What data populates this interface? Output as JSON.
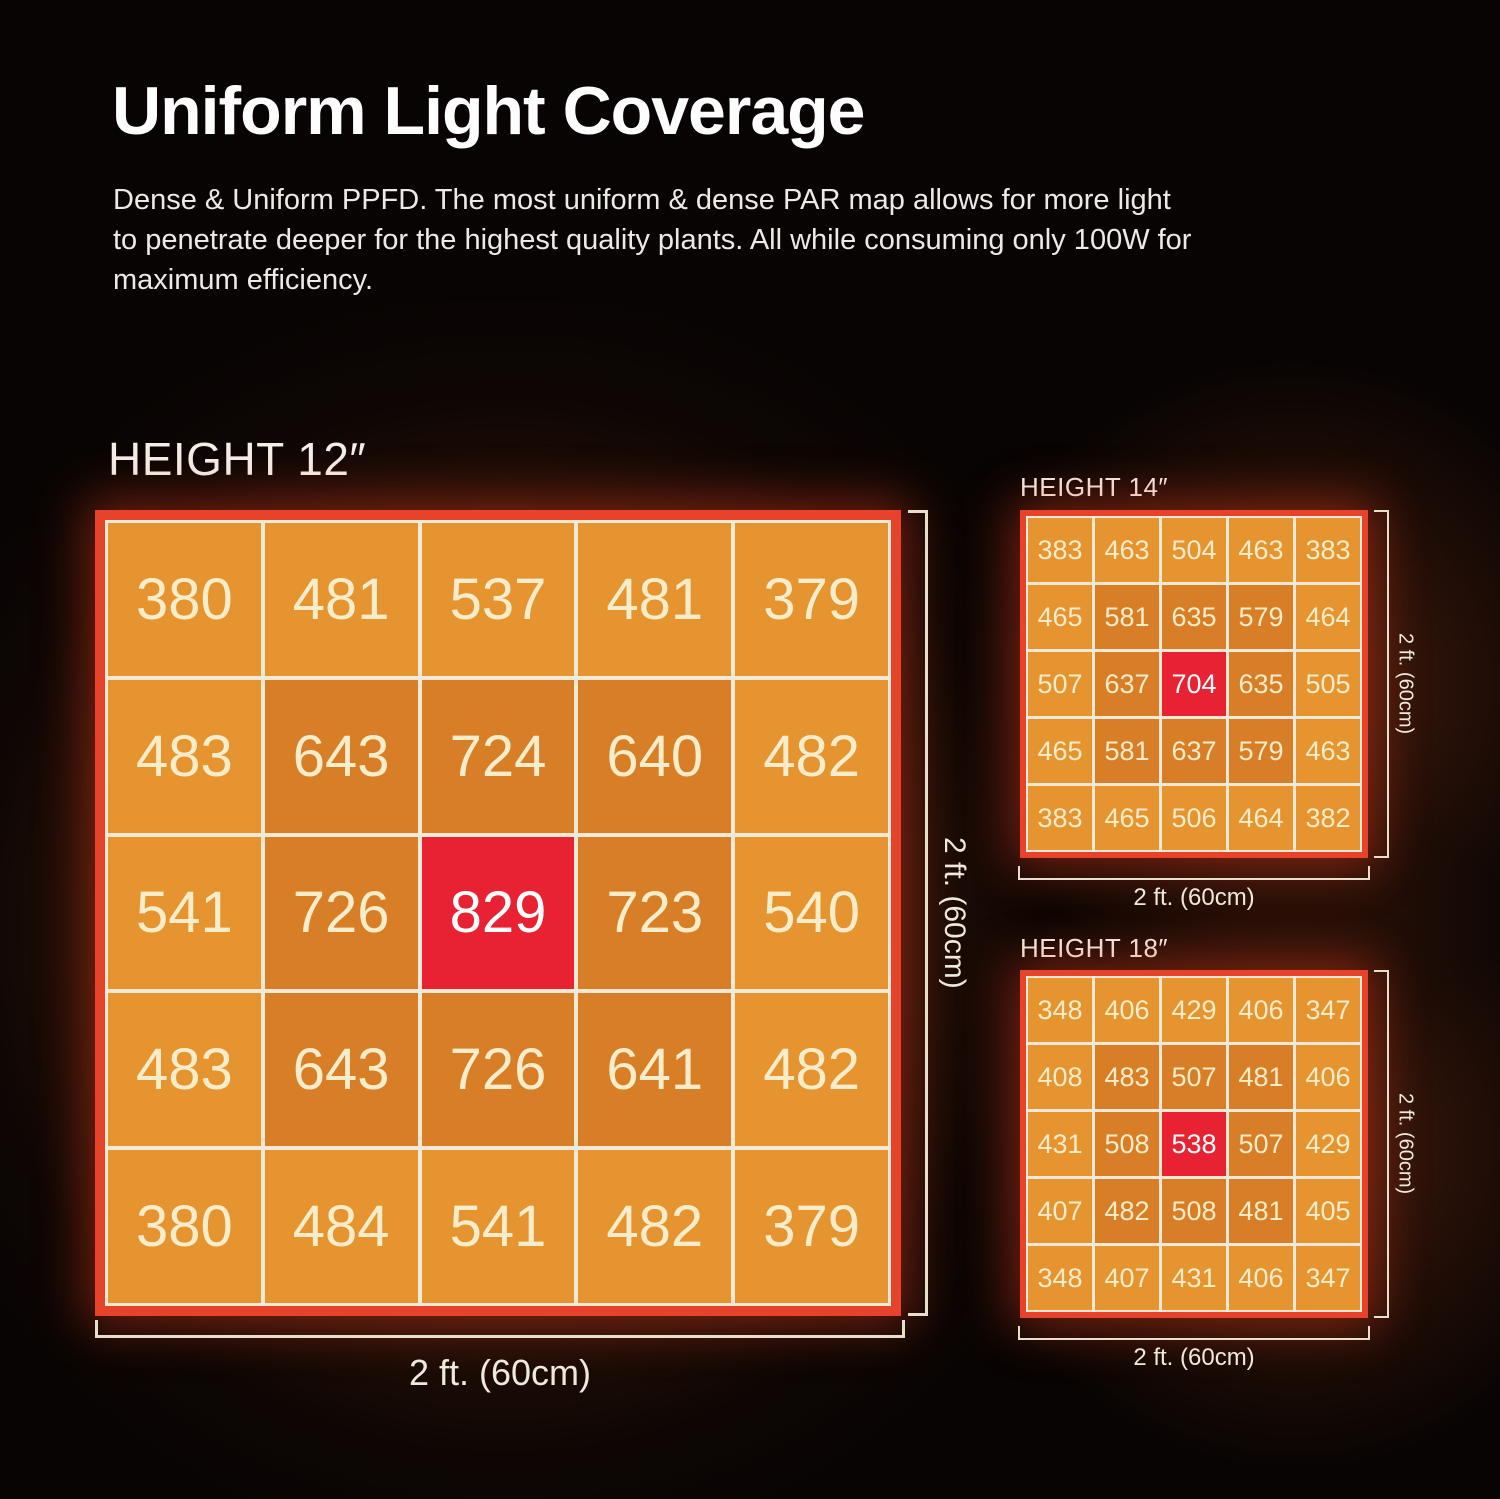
{
  "page": {
    "title": "Uniform Light Coverage",
    "description": "Dense & Uniform PPFD. The most uniform & dense PAR map allows for more light to penetrate deeper for the highest quality plants.  All while consuming only 100W for maximum efficiency."
  },
  "colors": {
    "background": "#070403",
    "frame_red": "#e7432a",
    "grid_line": "#f2ead6",
    "cell_low": "#e6942f",
    "cell_mid": "#d87e26",
    "cell_peak": "#e92233",
    "value_text": "#f8edcb",
    "peak_value_text": "#ffffff",
    "label_text": "#f3efe7"
  },
  "chart_data": [
    {
      "type": "heatmap",
      "title": "HEIGHT 12″",
      "rows": 5,
      "cols": 5,
      "values": [
        [
          380,
          481,
          537,
          481,
          379
        ],
        [
          483,
          643,
          724,
          640,
          482
        ],
        [
          541,
          726,
          829,
          723,
          540
        ],
        [
          483,
          643,
          726,
          641,
          482
        ],
        [
          380,
          484,
          541,
          482,
          379
        ]
      ],
      "x_label": "2 ft. (60cm)",
      "y_label": "2 ft. (60cm)",
      "color_rule": "outer ring low-orange, inner ring dark-orange, center peak red"
    },
    {
      "type": "heatmap",
      "title": "HEIGHT 14″",
      "rows": 5,
      "cols": 5,
      "values": [
        [
          383,
          463,
          504,
          463,
          383
        ],
        [
          465,
          581,
          635,
          579,
          464
        ],
        [
          507,
          637,
          704,
          635,
          505
        ],
        [
          465,
          581,
          637,
          579,
          463
        ],
        [
          383,
          465,
          506,
          464,
          382
        ]
      ],
      "x_label": "2 ft. (60cm)",
      "y_label": "2 ft. (60cm)",
      "color_rule": "outer ring low-orange, inner ring dark-orange, center peak red"
    },
    {
      "type": "heatmap",
      "title": "HEIGHT 18″",
      "rows": 5,
      "cols": 5,
      "values": [
        [
          348,
          406,
          429,
          406,
          347
        ],
        [
          408,
          483,
          507,
          481,
          406
        ],
        [
          431,
          508,
          538,
          507,
          429
        ],
        [
          407,
          482,
          508,
          481,
          405
        ],
        [
          348,
          407,
          431,
          406,
          347
        ]
      ],
      "x_label": "2 ft. (60cm)",
      "y_label": "2 ft. (60cm)",
      "color_rule": "outer ring low-orange, inner ring dark-orange, center peak red"
    }
  ]
}
